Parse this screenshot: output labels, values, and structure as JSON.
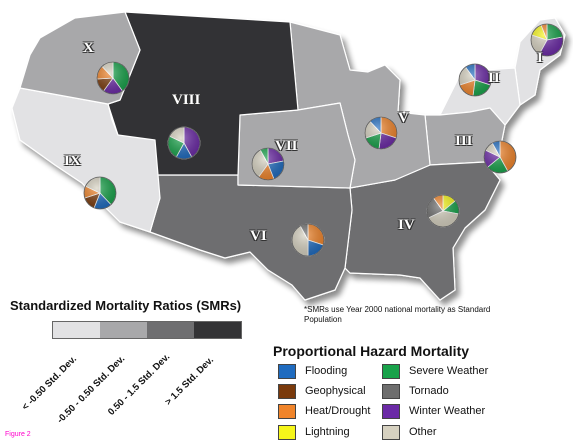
{
  "regions": [
    {
      "numeral": "I",
      "fill": "#e2e2e4"
    },
    {
      "numeral": "II",
      "fill": "#e2e2e4"
    },
    {
      "numeral": "III",
      "fill": "#a8a8aa"
    },
    {
      "numeral": "IV",
      "fill": "#6e6e70"
    },
    {
      "numeral": "V",
      "fill": "#a8a8aa"
    },
    {
      "numeral": "VI",
      "fill": "#6e6e70"
    },
    {
      "numeral": "VII",
      "fill": "#a8a8aa"
    },
    {
      "numeral": "VIII",
      "fill": "#333335"
    },
    {
      "numeral": "IX",
      "fill": "#e2e2e4"
    },
    {
      "numeral": "X",
      "fill": "#a8a8aa"
    }
  ],
  "smr_legend": {
    "title": "Standardized Mortality Ratios (SMRs)",
    "classes": [
      {
        "label": "< -0.50 Std. Dev.",
        "color": "#e2e2e4"
      },
      {
        "label": "-0.50 - 0.50 Std. Dev.",
        "color": "#a8a8aa"
      },
      {
        "label": "0.50 - 1.5 Std. Dev.",
        "color": "#6e6e70"
      },
      {
        "label": "> 1.5 Std. Dev.",
        "color": "#333335"
      }
    ]
  },
  "note": "*SMRs use Year 2000 national mortality as Standard Population",
  "hazard_legend": {
    "title": "Proportional Hazard Mortality",
    "items": [
      {
        "label": "Flooding",
        "color": "#1f6bbf"
      },
      {
        "label": "Geophysical",
        "color": "#7a3a0c"
      },
      {
        "label": "Heat/Drought",
        "color": "#f0842a"
      },
      {
        "label": "Lightning",
        "color": "#f6f61a"
      },
      {
        "label": "Severe Weather",
        "color": "#18a24a"
      },
      {
        "label": "Tornado",
        "color": "#6d6d6d"
      },
      {
        "label": "Winter Weather",
        "color": "#6b2aa6"
      },
      {
        "label": "Other",
        "color": "#d6d1c0"
      }
    ]
  },
  "pies": [
    {
      "region": "I",
      "shares": {
        "Severe Weather": 0.22,
        "Winter Weather": 0.36,
        "Other": 0.22,
        "Lightning": 0.14,
        "Heat/Drought": 0.06
      }
    },
    {
      "region": "II",
      "shares": {
        "Winter Weather": 0.3,
        "Severe Weather": 0.22,
        "Heat/Drought": 0.18,
        "Other": 0.2,
        "Flooding": 0.1
      }
    },
    {
      "region": "III",
      "shares": {
        "Heat/Drought": 0.42,
        "Severe Weather": 0.22,
        "Winter Weather": 0.18,
        "Other": 0.1,
        "Flooding": 0.08
      }
    },
    {
      "region": "IV",
      "shares": {
        "Lightning": 0.14,
        "Severe Weather": 0.14,
        "Other": 0.4,
        "Tornado": 0.22,
        "Heat/Drought": 0.1
      }
    },
    {
      "region": "V",
      "shares": {
        "Heat/Drought": 0.3,
        "Winter Weather": 0.22,
        "Severe Weather": 0.18,
        "Other": 0.18,
        "Flooding": 0.12
      }
    },
    {
      "region": "VI",
      "shares": {
        "Heat/Drought": 0.3,
        "Flooding": 0.2,
        "Other": 0.42,
        "Tornado": 0.08
      }
    },
    {
      "region": "VII",
      "shares": {
        "Winter Weather": 0.22,
        "Flooding": 0.22,
        "Heat/Drought": 0.16,
        "Other": 0.32,
        "Severe Weather": 0.08
      }
    },
    {
      "region": "VIII",
      "shares": {
        "Winter Weather": 0.42,
        "Flooding": 0.16,
        "Severe Weather": 0.24,
        "Other": 0.18
      }
    },
    {
      "region": "IX",
      "shares": {
        "Severe Weather": 0.38,
        "Flooding": 0.18,
        "Geophysical": 0.14,
        "Heat/Drought": 0.12,
        "Other": 0.18
      }
    },
    {
      "region": "X",
      "shares": {
        "Severe Weather": 0.4,
        "Winter Weather": 0.2,
        "Geophysical": 0.14,
        "Heat/Drought": 0.14,
        "Other": 0.12
      }
    }
  ],
  "figure_label": "Figure 2"
}
